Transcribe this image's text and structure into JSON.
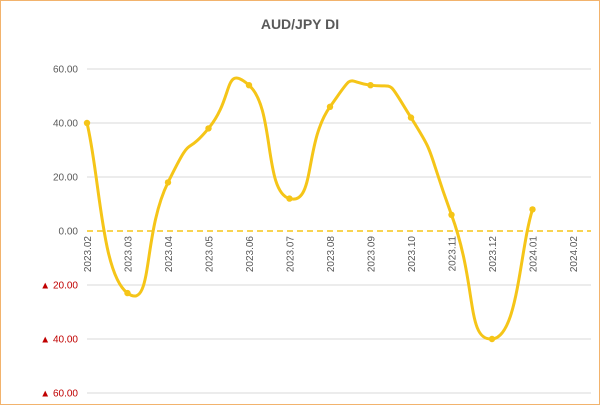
{
  "chart_data": {
    "type": "line",
    "title": "AUD/JPY  DI",
    "xlabel": "",
    "ylabel": "",
    "ylim": [
      -60,
      60
    ],
    "y_ticks": [
      {
        "value": 60,
        "label": "60.00"
      },
      {
        "value": 40,
        "label": "40.00"
      },
      {
        "value": 20,
        "label": "20.00"
      },
      {
        "value": 0,
        "label": "0.00"
      },
      {
        "value": -20,
        "label": "▲ 20.00"
      },
      {
        "value": -40,
        "label": "▲ 40.00"
      },
      {
        "value": -60,
        "label": "▲ 60.00"
      }
    ],
    "categories": [
      "2023.02",
      "2023.03",
      "2023.04",
      "2023.05",
      "2023.06",
      "2023.07",
      "2023.08",
      "2023.09",
      "2023.10",
      "2023.11",
      "2023.12",
      "2024.01",
      "2024.02"
    ],
    "series": [
      {
        "values": [
          40,
          -23,
          18,
          38,
          54,
          12,
          46,
          54,
          42,
          6,
          -40,
          8,
          null
        ],
        "color": "#f5c518"
      }
    ],
    "zero_line": {
      "style": "dashed",
      "color": "#f5c518"
    },
    "grid": "horizontal",
    "legend": "none"
  }
}
